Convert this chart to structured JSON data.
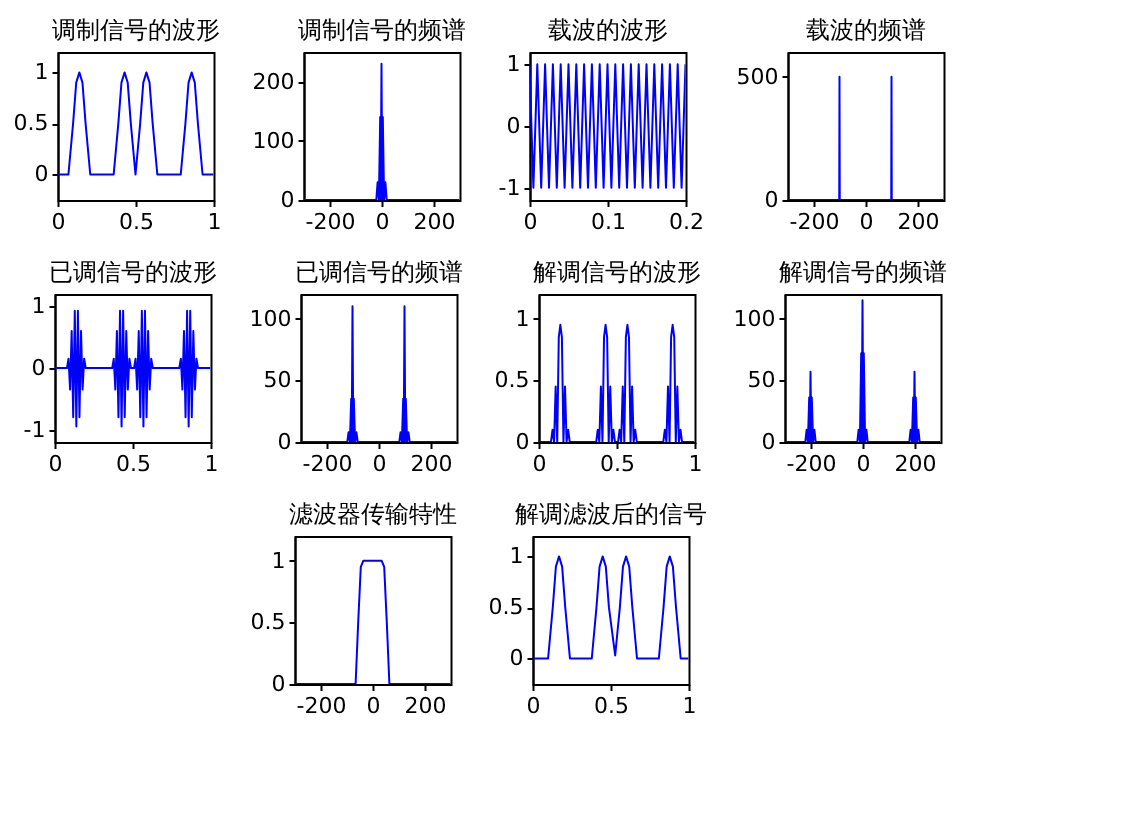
{
  "chart_data": [
    {
      "type": "line",
      "title": "调制信号的波形",
      "x": [
        0,
        0.07,
        0.1,
        0.12,
        0.14,
        0.16,
        0.18,
        0.21,
        0.36,
        0.39,
        0.41,
        0.43,
        0.45,
        0.47,
        0.5,
        0.53,
        0.55,
        0.57,
        0.59,
        0.61,
        0.64,
        0.79,
        0.82,
        0.84,
        0.86,
        0.88,
        0.9,
        0.93,
        1
      ],
      "series": [
        {
          "color": "#0000ff",
          "values": [
            0,
            0,
            0.5,
            0.9,
            1,
            0.9,
            0.5,
            0,
            0,
            0.5,
            0.9,
            1,
            0.9,
            0.5,
            0,
            0.5,
            0.9,
            1,
            0.9,
            0.5,
            0,
            0,
            0.5,
            0.9,
            1,
            0.9,
            0.5,
            0,
            0
          ]
        }
      ],
      "xlim": [
        0,
        1
      ],
      "ylim": [
        -0.25,
        1.2
      ],
      "xticks": [
        0,
        0.5,
        1
      ],
      "yticks": [
        0,
        0.5,
        1
      ]
    },
    {
      "type": "line",
      "title": "调制信号的频谱",
      "x": [
        -300,
        -20,
        -15,
        -10,
        -5,
        -3,
        0,
        3,
        5,
        10,
        15,
        20,
        300
      ],
      "series": [
        {
          "color": "#0000ff",
          "values": [
            0,
            0,
            30,
            0,
            140,
            0,
            230,
            0,
            140,
            0,
            30,
            0,
            0
          ]
        }
      ],
      "xlim": [
        -300,
        300
      ],
      "ylim": [
        0,
        250
      ],
      "xticks": [
        -200,
        0,
        200
      ],
      "yticks": [
        0,
        100,
        200
      ]
    },
    {
      "type": "line",
      "title": "载波的波形",
      "x": [
        0,
        0.005,
        0.01,
        0.015,
        0.02,
        0.025,
        0.03,
        0.035,
        0.04,
        0.045,
        0.05,
        0.055,
        0.06,
        0.065,
        0.07,
        0.075,
        0.08,
        0.085,
        0.09,
        0.095,
        0.1,
        0.105,
        0.11,
        0.115,
        0.12,
        0.125,
        0.13,
        0.135,
        0.14,
        0.145,
        0.15,
        0.155,
        0.16,
        0.165,
        0.17,
        0.175,
        0.18,
        0.185,
        0.19,
        0.195,
        0.2
      ],
      "series": [
        {
          "color": "#0000ff",
          "values": [
            1,
            -1,
            1,
            -1,
            1,
            -1,
            1,
            -1,
            1,
            -1,
            1,
            -1,
            1,
            -1,
            1,
            -1,
            1,
            -1,
            1,
            -1,
            1,
            -1,
            1,
            -1,
            1,
            -1,
            1,
            -1,
            1,
            -1,
            1,
            -1,
            1,
            -1,
            1,
            -1,
            1,
            -1,
            1,
            -1,
            1
          ]
        }
      ],
      "xlim": [
        0,
        0.2
      ],
      "ylim": [
        -1.2,
        1.2
      ],
      "xticks": [
        0,
        0.1,
        0.2
      ],
      "yticks": [
        -1,
        0,
        1
      ]
    },
    {
      "type": "line",
      "title": "载波的频谱",
      "x": [
        -300,
        -101,
        -100,
        -99,
        99,
        100,
        101,
        300
      ],
      "series": [
        {
          "color": "#0000ff",
          "values": [
            0,
            0,
            500,
            0,
            0,
            500,
            0,
            0
          ]
        }
      ],
      "xlim": [
        -300,
        300
      ],
      "ylim": [
        0,
        600
      ],
      "xticks": [
        -200,
        0,
        200
      ],
      "yticks": [
        0,
        500
      ]
    },
    {
      "type": "line",
      "title": "已调信号的波形",
      "x": [
        0,
        0.08,
        0.09,
        0.1,
        0.11,
        0.12,
        0.13,
        0.14,
        0.15,
        0.16,
        0.17,
        0.18,
        0.19,
        0.2,
        0.37,
        0.38,
        0.39,
        0.4,
        0.41,
        0.42,
        0.43,
        0.44,
        0.45,
        0.46,
        0.47,
        0.48,
        0.49,
        0.51,
        0.52,
        0.53,
        0.54,
        0.55,
        0.56,
        0.57,
        0.58,
        0.59,
        0.6,
        0.61,
        0.62,
        0.63,
        0.8,
        0.81,
        0.82,
        0.83,
        0.84,
        0.85,
        0.86,
        0.87,
        0.88,
        0.89,
        0.9,
        0.91,
        0.92,
        1
      ],
      "series": [
        {
          "color": "#0000ff",
          "values": [
            0,
            0,
            0.15,
            -0.35,
            0.6,
            -0.8,
            0.93,
            -0.95,
            0.93,
            -0.8,
            0.6,
            -0.35,
            0.15,
            0,
            0,
            0.15,
            -0.35,
            0.6,
            -0.8,
            0.93,
            -0.95,
            0.93,
            -0.8,
            0.6,
            -0.35,
            0.15,
            0,
            0,
            0.15,
            -0.35,
            0.6,
            -0.8,
            0.93,
            -0.95,
            0.93,
            -0.8,
            0.6,
            -0.35,
            0.15,
            0,
            0,
            0.15,
            -0.35,
            0.6,
            -0.8,
            0.93,
            -0.95,
            0.93,
            -0.8,
            0.6,
            -0.35,
            0.15,
            0,
            0
          ]
        }
      ],
      "xlim": [
        0,
        1
      ],
      "ylim": [
        -1.2,
        1.2
      ],
      "xticks": [
        0,
        0.5,
        1
      ],
      "yticks": [
        -1,
        0,
        1
      ]
    },
    {
      "type": "line",
      "title": "已调信号的频谱",
      "x": [
        -300,
        -120,
        -115,
        -110,
        -105,
        -103,
        -100,
        -97,
        -95,
        -90,
        -85,
        -80,
        80,
        85,
        90,
        95,
        97,
        100,
        103,
        105,
        110,
        115,
        120,
        300
      ],
      "series": [
        {
          "color": "#0000ff",
          "values": [
            0,
            0,
            8,
            0,
            35,
            0,
            110,
            0,
            35,
            0,
            8,
            0,
            0,
            8,
            0,
            35,
            0,
            110,
            0,
            35,
            0,
            8,
            0,
            0
          ]
        }
      ],
      "xlim": [
        -300,
        300
      ],
      "ylim": [
        0,
        120
      ],
      "xticks": [
        -200,
        0,
        200
      ],
      "yticks": [
        0,
        50,
        100
      ]
    },
    {
      "type": "line",
      "title": "解调信号的波形",
      "x": [
        0,
        0.08,
        0.09,
        0.1,
        0.11,
        0.12,
        0.13,
        0.14,
        0.15,
        0.16,
        0.17,
        0.18,
        0.19,
        0.2,
        0.37,
        0.38,
        0.39,
        0.4,
        0.41,
        0.42,
        0.43,
        0.44,
        0.45,
        0.46,
        0.47,
        0.48,
        0.49,
        0.51,
        0.52,
        0.53,
        0.54,
        0.55,
        0.56,
        0.57,
        0.58,
        0.59,
        0.6,
        0.61,
        0.62,
        0.63,
        0.8,
        0.81,
        0.82,
        0.83,
        0.84,
        0.85,
        0.86,
        0.87,
        0.88,
        0.89,
        0.9,
        0.91,
        0.92,
        1
      ],
      "series": [
        {
          "color": "#0000ff",
          "values": [
            0,
            0,
            0.1,
            0,
            0.45,
            0,
            0.85,
            0.95,
            0.85,
            0,
            0.45,
            0,
            0.1,
            0,
            0,
            0.1,
            0,
            0.45,
            0,
            0.85,
            0.95,
            0.85,
            0,
            0.45,
            0,
            0.1,
            0,
            0,
            0.1,
            0,
            0.45,
            0,
            0.85,
            0.95,
            0.85,
            0,
            0.45,
            0,
            0.1,
            0,
            0,
            0.1,
            0,
            0.45,
            0,
            0.85,
            0.95,
            0.85,
            0,
            0.45,
            0,
            0.1,
            0,
            0
          ]
        }
      ],
      "xlim": [
        0,
        1
      ],
      "ylim": [
        0,
        1.2
      ],
      "xticks": [
        0,
        0.5,
        1
      ],
      "yticks": [
        0,
        0.5,
        1
      ]
    },
    {
      "type": "line",
      "title": "解调信号的频谱",
      "x": [
        -300,
        -220,
        -215,
        -210,
        -205,
        -203,
        -200,
        -197,
        -195,
        -190,
        -185,
        -180,
        -20,
        -15,
        -10,
        -5,
        -3,
        0,
        3,
        5,
        10,
        15,
        20,
        180,
        185,
        190,
        195,
        197,
        200,
        203,
        205,
        210,
        215,
        220,
        300
      ],
      "series": [
        {
          "color": "#0000ff",
          "values": [
            0,
            0,
            10,
            0,
            36,
            0,
            57,
            0,
            36,
            0,
            10,
            0,
            0,
            10,
            0,
            72,
            0,
            115,
            0,
            72,
            0,
            10,
            0,
            0,
            10,
            0,
            36,
            0,
            57,
            0,
            36,
            0,
            10,
            0,
            0
          ]
        }
      ],
      "xlim": [
        -300,
        300
      ],
      "ylim": [
        0,
        120
      ],
      "xticks": [
        -200,
        0,
        200
      ],
      "yticks": [
        0,
        50,
        100
      ]
    },
    {
      "type": "line",
      "title": "滤波器传输特性",
      "x": [
        -300,
        -65,
        -55,
        -45,
        -35,
        35,
        45,
        55,
        65,
        300
      ],
      "series": [
        {
          "color": "#0000ff",
          "values": [
            0,
            0,
            0.5,
            0.95,
            1,
            1,
            0.95,
            0.5,
            0,
            0
          ]
        }
      ],
      "xlim": [
        -300,
        300
      ],
      "ylim": [
        0,
        1.2
      ],
      "xticks": [
        -200,
        0,
        200
      ],
      "yticks": [
        0,
        0.5,
        1
      ]
    },
    {
      "type": "line",
      "title": "解调滤波后的信号",
      "x": [
        0,
        0.1,
        0.13,
        0.15,
        0.17,
        0.19,
        0.21,
        0.24,
        0.38,
        0.41,
        0.43,
        0.45,
        0.47,
        0.49,
        0.53,
        0.56,
        0.58,
        0.6,
        0.62,
        0.64,
        0.67,
        0.81,
        0.84,
        0.86,
        0.88,
        0.9,
        0.92,
        0.95,
        1
      ],
      "series": [
        {
          "color": "#0000ff",
          "values": [
            0,
            0,
            0.5,
            0.9,
            1,
            0.9,
            0.5,
            0,
            0,
            0.5,
            0.9,
            1,
            0.9,
            0.5,
            0.03,
            0.5,
            0.9,
            1,
            0.9,
            0.5,
            0,
            0,
            0.5,
            0.9,
            1,
            0.9,
            0.5,
            0,
            0
          ]
        }
      ],
      "xlim": [
        0,
        1
      ],
      "ylim": [
        -0.25,
        1.2
      ],
      "xticks": [
        0,
        0.5,
        1
      ],
      "yticks": [
        0,
        0.5,
        1
      ]
    }
  ]
}
